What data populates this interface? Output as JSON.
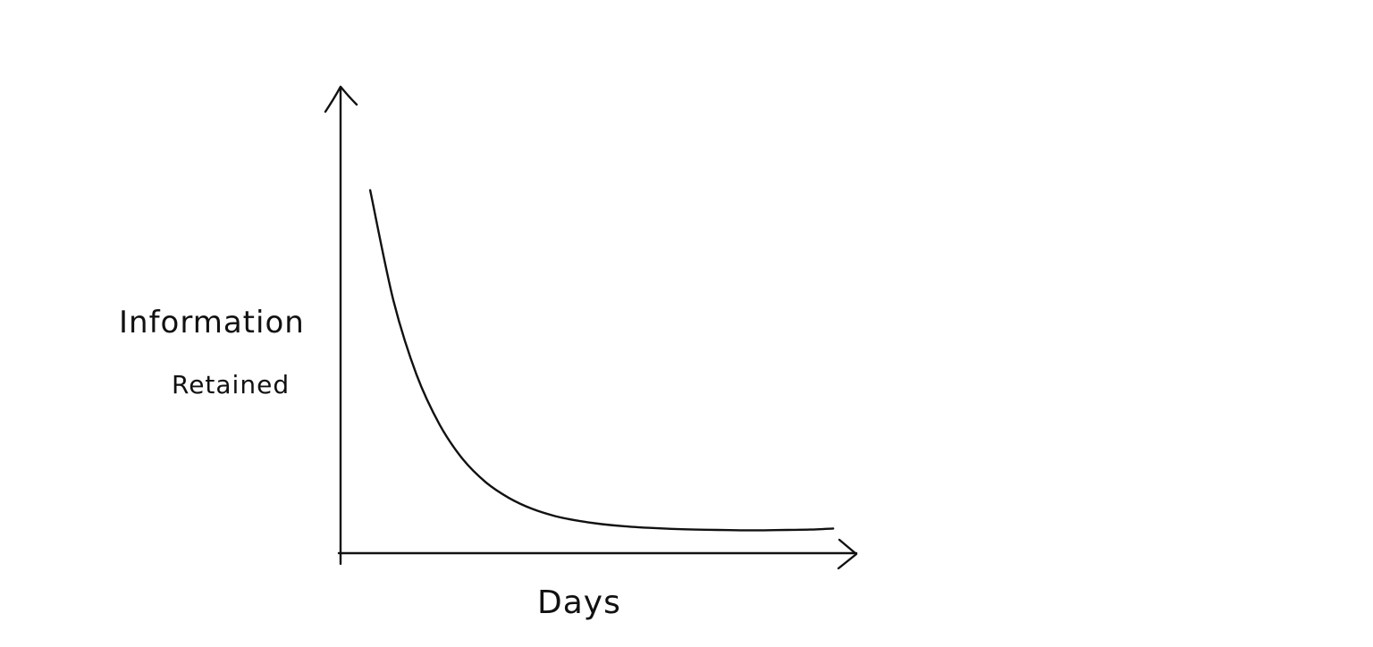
{
  "chart_data": {
    "type": "line",
    "title": "",
    "xlabel": "Days",
    "ylabel_lines": [
      "Information",
      "Retained"
    ],
    "ylabel": "Information Retained",
    "axis_ticks_shown": false,
    "grid": false,
    "legend": "none",
    "line_color": "#111111",
    "x": [
      0,
      5,
      10,
      15,
      20,
      25,
      30,
      35,
      40,
      45,
      50,
      55,
      60,
      65,
      70,
      75,
      80,
      85,
      90,
      95,
      100
    ],
    "y": [
      100,
      69.7,
      49.2,
      35.4,
      25.9,
      19.5,
      15.2,
      12.2,
      10.2,
      8.9,
      8.0,
      7.4,
      7.0,
      6.7,
      6.5,
      6.4,
      6.3,
      6.3,
      6.4,
      6.5,
      6.8
    ],
    "xlim": [
      -6.4,
      105
    ],
    "ylim": [
      0,
      128
    ]
  }
}
